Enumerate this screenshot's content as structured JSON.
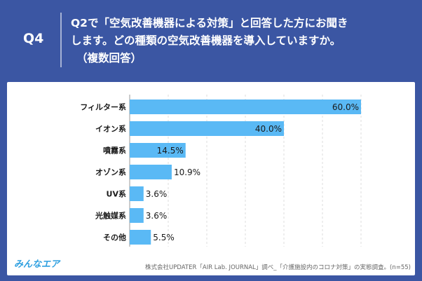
{
  "header": {
    "q_number": "Q4",
    "question_line1": "Q2で「空気改善機器による対策」と回答した方にお聞き",
    "question_line2": "します。どの種類の空気改善機器を導入していますか。",
    "question_sub": "（複数回答）"
  },
  "footer": {
    "logo": "みんなエア",
    "source": "株式会社UPDATER「AIR Lab. JOURNAL」調べ_「介護施設内のコロナ対策」の実態調査。(n=55)"
  },
  "colors": {
    "background": "#3b56a3",
    "bar": "#5ab9f5",
    "text": "#1a1a1a"
  },
  "chart_data": {
    "type": "bar",
    "orientation": "horizontal",
    "categories": [
      "フィルター系",
      "イオン系",
      "噴霧系",
      "オゾン系",
      "UV系",
      "光触媒系",
      "その他"
    ],
    "values": [
      60.0,
      40.0,
      14.5,
      10.9,
      3.6,
      3.6,
      5.5
    ],
    "value_labels": [
      "60.0%",
      "40.0%",
      "14.5%",
      "10.9%",
      "3.6%",
      "3.6%",
      "5.5%"
    ],
    "xlim": [
      0,
      60
    ],
    "grid": true
  }
}
